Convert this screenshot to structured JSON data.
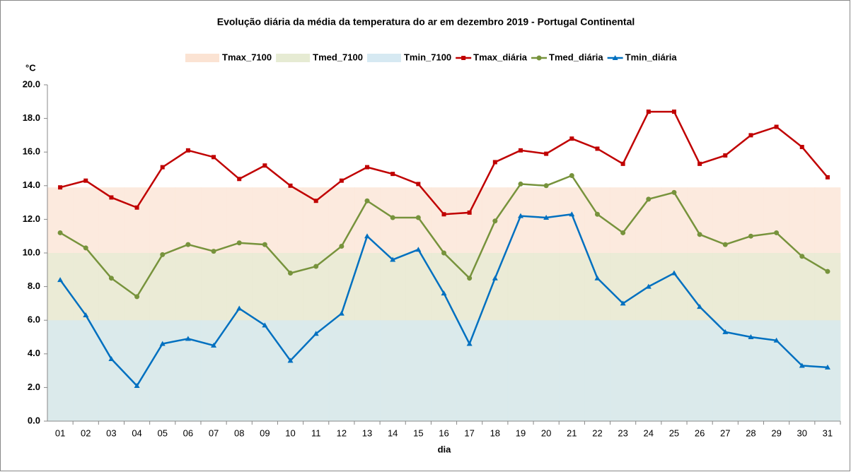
{
  "chart_data": {
    "type": "line",
    "title": "Evolução diária da média da temperatura do ar em dezembro 2019 - Portugal Continental",
    "y_label": "°C",
    "x_label": "dia",
    "categories": [
      "01",
      "02",
      "03",
      "04",
      "05",
      "06",
      "07",
      "08",
      "09",
      "10",
      "11",
      "12",
      "13",
      "14",
      "15",
      "16",
      "17",
      "18",
      "19",
      "20",
      "21",
      "22",
      "23",
      "24",
      "25",
      "26",
      "27",
      "28",
      "29",
      "30",
      "31"
    ],
    "ylim": [
      0,
      20
    ],
    "yticks": [
      {
        "value": 0,
        "label": "0.0"
      },
      {
        "value": 2,
        "label": "2.0"
      },
      {
        "value": 4,
        "label": "4.0"
      },
      {
        "value": 6,
        "label": "6.0"
      },
      {
        "value": 8,
        "label": "8.0"
      },
      {
        "value": 10,
        "label": "10.0"
      },
      {
        "value": 12,
        "label": "12.0"
      },
      {
        "value": 14,
        "label": "14.0"
      },
      {
        "value": 16,
        "label": "16.0"
      },
      {
        "value": 18,
        "label": "18.0"
      },
      {
        "value": 20,
        "label": "20.0"
      }
    ],
    "grid": false,
    "series": [
      {
        "name": "Tmax_7100",
        "type": "area",
        "color": "#fbe3d3",
        "values": [
          13.9,
          13.9,
          13.9,
          13.9,
          13.9,
          13.9,
          13.9,
          13.9,
          13.9,
          13.9,
          13.9,
          13.9,
          13.9,
          13.9,
          13.9,
          13.9,
          13.9,
          13.9,
          13.9,
          13.9,
          13.9,
          13.9,
          13.9,
          13.9,
          13.9,
          13.9,
          13.9,
          13.9,
          13.9,
          13.9,
          13.9
        ]
      },
      {
        "name": "Tmed_7100",
        "type": "area",
        "color": "#e6ebd3",
        "values": [
          10,
          10,
          10,
          10,
          10,
          10,
          10,
          10,
          10,
          10,
          10,
          10,
          10,
          10,
          10,
          10,
          10,
          10,
          10,
          10,
          10,
          10,
          10,
          10,
          10,
          10,
          10,
          10,
          10,
          10,
          10
        ]
      },
      {
        "name": "Tmin_7100",
        "type": "area",
        "color": "#d6e9f2",
        "values": [
          6,
          6,
          6,
          6,
          6,
          6,
          6,
          6,
          6,
          6,
          6,
          6,
          6,
          6,
          6,
          6,
          6,
          6,
          6,
          6,
          6,
          6,
          6,
          6,
          6,
          6,
          6,
          6,
          6,
          6,
          6
        ]
      },
      {
        "name": "Tmax_diária",
        "type": "line",
        "marker": "square",
        "color": "#c00000",
        "values": [
          13.9,
          14.3,
          13.3,
          12.7,
          15.1,
          16.1,
          15.7,
          14.4,
          15.2,
          14.0,
          13.1,
          14.3,
          15.1,
          14.7,
          14.1,
          12.3,
          12.4,
          15.4,
          16.1,
          15.9,
          16.8,
          16.2,
          15.3,
          18.4,
          18.4,
          15.3,
          15.8,
          17.0,
          17.5,
          16.3,
          14.5
        ]
      },
      {
        "name": "Tmed_diária",
        "type": "line",
        "marker": "circle",
        "color": "#77933c",
        "values": [
          11.2,
          10.3,
          8.5,
          7.4,
          9.9,
          10.5,
          10.1,
          10.6,
          10.5,
          8.8,
          9.2,
          10.4,
          13.1,
          12.1,
          12.1,
          10.0,
          8.5,
          11.9,
          14.1,
          14.0,
          14.6,
          12.3,
          11.2,
          13.2,
          13.6,
          11.1,
          10.5,
          11.0,
          11.2,
          9.8,
          8.9
        ]
      },
      {
        "name": "Tmin_diária",
        "type": "line",
        "marker": "triangle",
        "color": "#0070c0",
        "values": [
          8.4,
          6.3,
          3.7,
          2.1,
          4.6,
          4.9,
          4.5,
          6.7,
          5.7,
          3.6,
          5.2,
          6.4,
          11.0,
          9.6,
          10.2,
          7.6,
          4.6,
          8.5,
          12.2,
          12.1,
          12.3,
          8.5,
          7.0,
          8.0,
          8.8,
          6.8,
          5.3,
          5.0,
          4.8,
          3.3,
          3.2
        ]
      }
    ]
  }
}
